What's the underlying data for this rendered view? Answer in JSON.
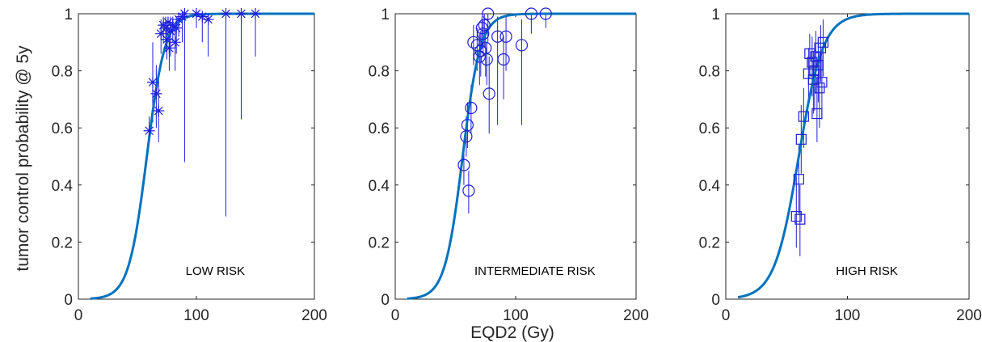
{
  "figure": {
    "ylabel": "tumor control probability @ 5y",
    "xlabel": "EQD2 (Gy)"
  },
  "chart_data": [
    {
      "type": "scatter",
      "annotation": "LOW RISK",
      "marker": "asterisk",
      "xlim": [
        0,
        200
      ],
      "ylim": [
        0,
        1
      ],
      "xticks": [
        "0",
        "100",
        "200"
      ],
      "yticks": [
        "0",
        "0.2",
        "0.4",
        "0.6",
        "0.8",
        "1"
      ],
      "colors": {
        "marker": "#1f1fd6",
        "curve": "#0072bd"
      },
      "fit_curve": {
        "d50": 58,
        "steepness": 0.13
      },
      "points": [
        {
          "x": 60,
          "y": 0.59,
          "lo": 0.55,
          "hi": 0.64
        },
        {
          "x": 63,
          "y": 0.76,
          "lo": 0.62,
          "hi": 0.9
        },
        {
          "x": 66,
          "y": 0.72,
          "lo": 0.6,
          "hi": 0.82
        },
        {
          "x": 68,
          "y": 0.66,
          "lo": 0.55,
          "hi": 0.78
        },
        {
          "x": 70,
          "y": 0.93,
          "lo": 0.86,
          "hi": 0.98
        },
        {
          "x": 72,
          "y": 0.96,
          "lo": 0.9,
          "hi": 0.99
        },
        {
          "x": 74,
          "y": 0.95,
          "lo": 0.87,
          "hi": 0.99
        },
        {
          "x": 75,
          "y": 0.91,
          "lo": 0.84,
          "hi": 0.96
        },
        {
          "x": 76,
          "y": 0.97,
          "lo": 0.9,
          "hi": 0.99
        },
        {
          "x": 77,
          "y": 0.88,
          "lo": 0.8,
          "hi": 0.94
        },
        {
          "x": 78,
          "y": 0.94,
          "lo": 0.85,
          "hi": 0.99
        },
        {
          "x": 80,
          "y": 0.96,
          "lo": 0.9,
          "hi": 0.99
        },
        {
          "x": 82,
          "y": 0.9,
          "lo": 0.8,
          "hi": 0.96
        },
        {
          "x": 83,
          "y": 0.95,
          "lo": 0.86,
          "hi": 0.99
        },
        {
          "x": 85,
          "y": 0.98,
          "lo": 0.92,
          "hi": 1.0
        },
        {
          "x": 88,
          "y": 0.99,
          "lo": 0.9,
          "hi": 1.0
        },
        {
          "x": 90,
          "y": 1.0,
          "lo": 0.48,
          "hi": 1.0
        },
        {
          "x": 100,
          "y": 1.0,
          "lo": 0.95,
          "hi": 1.0
        },
        {
          "x": 105,
          "y": 0.99,
          "lo": 0.9,
          "hi": 1.0
        },
        {
          "x": 110,
          "y": 0.98,
          "lo": 0.85,
          "hi": 1.0
        },
        {
          "x": 125,
          "y": 1.0,
          "lo": 0.29,
          "hi": 1.0
        },
        {
          "x": 138,
          "y": 1.0,
          "lo": 0.63,
          "hi": 1.0
        },
        {
          "x": 150,
          "y": 1.0,
          "lo": 0.85,
          "hi": 1.0
        }
      ]
    },
    {
      "type": "scatter",
      "annotation": "INTERMEDIATE RISK",
      "marker": "circle",
      "xlim": [
        0,
        200
      ],
      "ylim": [
        0,
        1
      ],
      "xticks": [
        "0",
        "100",
        "200"
      ],
      "yticks": [
        "0",
        "0.2",
        "0.4",
        "0.6",
        "0.8",
        "1"
      ],
      "colors": {
        "marker": "#1f1fd6",
        "curve": "#0072bd"
      },
      "fit_curve": {
        "d50": 56,
        "steepness": 0.135
      },
      "points": [
        {
          "x": 57,
          "y": 0.47,
          "lo": 0.4,
          "hi": 0.54
        },
        {
          "x": 59,
          "y": 0.57,
          "lo": 0.5,
          "hi": 0.64
        },
        {
          "x": 60,
          "y": 0.61,
          "lo": 0.53,
          "hi": 0.69
        },
        {
          "x": 61,
          "y": 0.38,
          "lo": 0.3,
          "hi": 0.45
        },
        {
          "x": 63,
          "y": 0.67,
          "lo": 0.58,
          "hi": 0.75
        },
        {
          "x": 65,
          "y": 0.9,
          "lo": 0.82,
          "hi": 0.96
        },
        {
          "x": 68,
          "y": 0.89,
          "lo": 0.8,
          "hi": 0.95
        },
        {
          "x": 70,
          "y": 0.85,
          "lo": 0.75,
          "hi": 0.93
        },
        {
          "x": 71,
          "y": 0.87,
          "lo": 0.78,
          "hi": 0.94
        },
        {
          "x": 72,
          "y": 0.95,
          "lo": 0.88,
          "hi": 0.99
        },
        {
          "x": 73,
          "y": 0.93,
          "lo": 0.85,
          "hi": 0.98
        },
        {
          "x": 74,
          "y": 0.96,
          "lo": 0.88,
          "hi": 1.0
        },
        {
          "x": 75,
          "y": 0.88,
          "lo": 0.78,
          "hi": 0.95
        },
        {
          "x": 76,
          "y": 0.84,
          "lo": 0.75,
          "hi": 0.9
        },
        {
          "x": 77,
          "y": 1.0,
          "lo": 0.9,
          "hi": 1.0
        },
        {
          "x": 78,
          "y": 0.72,
          "lo": 0.58,
          "hi": 0.85
        },
        {
          "x": 85,
          "y": 0.92,
          "lo": 0.61,
          "hi": 0.99
        },
        {
          "x": 90,
          "y": 0.84,
          "lo": 0.7,
          "hi": 0.92
        },
        {
          "x": 92,
          "y": 0.92,
          "lo": 0.8,
          "hi": 0.99
        },
        {
          "x": 105,
          "y": 0.89,
          "lo": 0.61,
          "hi": 0.98
        },
        {
          "x": 113,
          "y": 1.0,
          "lo": 0.93,
          "hi": 1.0
        },
        {
          "x": 125,
          "y": 1.0,
          "lo": 0.95,
          "hi": 1.0
        }
      ]
    },
    {
      "type": "scatter",
      "annotation": "HIGH RISK",
      "marker": "square",
      "xlim": [
        0,
        200
      ],
      "ylim": [
        0,
        1
      ],
      "xticks": [
        "0",
        "100",
        "200"
      ],
      "yticks": [
        "0",
        "0.2",
        "0.4",
        "0.6",
        "0.8",
        "1"
      ],
      "colors": {
        "marker": "#1f1fd6",
        "curve": "#0072bd"
      },
      "fit_curve": {
        "d50": 60,
        "steepness": 0.1
      },
      "points": [
        {
          "x": 58,
          "y": 0.29,
          "lo": 0.18,
          "hi": 0.43
        },
        {
          "x": 60,
          "y": 0.42,
          "lo": 0.3,
          "hi": 0.54
        },
        {
          "x": 61,
          "y": 0.28,
          "lo": 0.15,
          "hi": 0.4
        },
        {
          "x": 62,
          "y": 0.56,
          "lo": 0.44,
          "hi": 0.68
        },
        {
          "x": 64,
          "y": 0.64,
          "lo": 0.53,
          "hi": 0.74
        },
        {
          "x": 68,
          "y": 0.79,
          "lo": 0.68,
          "hi": 0.88
        },
        {
          "x": 69,
          "y": 0.86,
          "lo": 0.77,
          "hi": 0.93
        },
        {
          "x": 71,
          "y": 0.83,
          "lo": 0.71,
          "hi": 0.92
        },
        {
          "x": 72,
          "y": 0.77,
          "lo": 0.65,
          "hi": 0.87
        },
        {
          "x": 73,
          "y": 0.8,
          "lo": 0.66,
          "hi": 0.9
        },
        {
          "x": 74,
          "y": 0.85,
          "lo": 0.72,
          "hi": 0.94
        },
        {
          "x": 75,
          "y": 0.65,
          "lo": 0.55,
          "hi": 0.75
        },
        {
          "x": 76,
          "y": 0.82,
          "lo": 0.69,
          "hi": 0.91
        },
        {
          "x": 77,
          "y": 0.74,
          "lo": 0.6,
          "hi": 0.86
        },
        {
          "x": 78,
          "y": 0.88,
          "lo": 0.76,
          "hi": 0.96
        },
        {
          "x": 79,
          "y": 0.76,
          "lo": 0.63,
          "hi": 0.87
        },
        {
          "x": 80,
          "y": 0.9,
          "lo": 0.78,
          "hi": 0.98
        }
      ]
    }
  ]
}
